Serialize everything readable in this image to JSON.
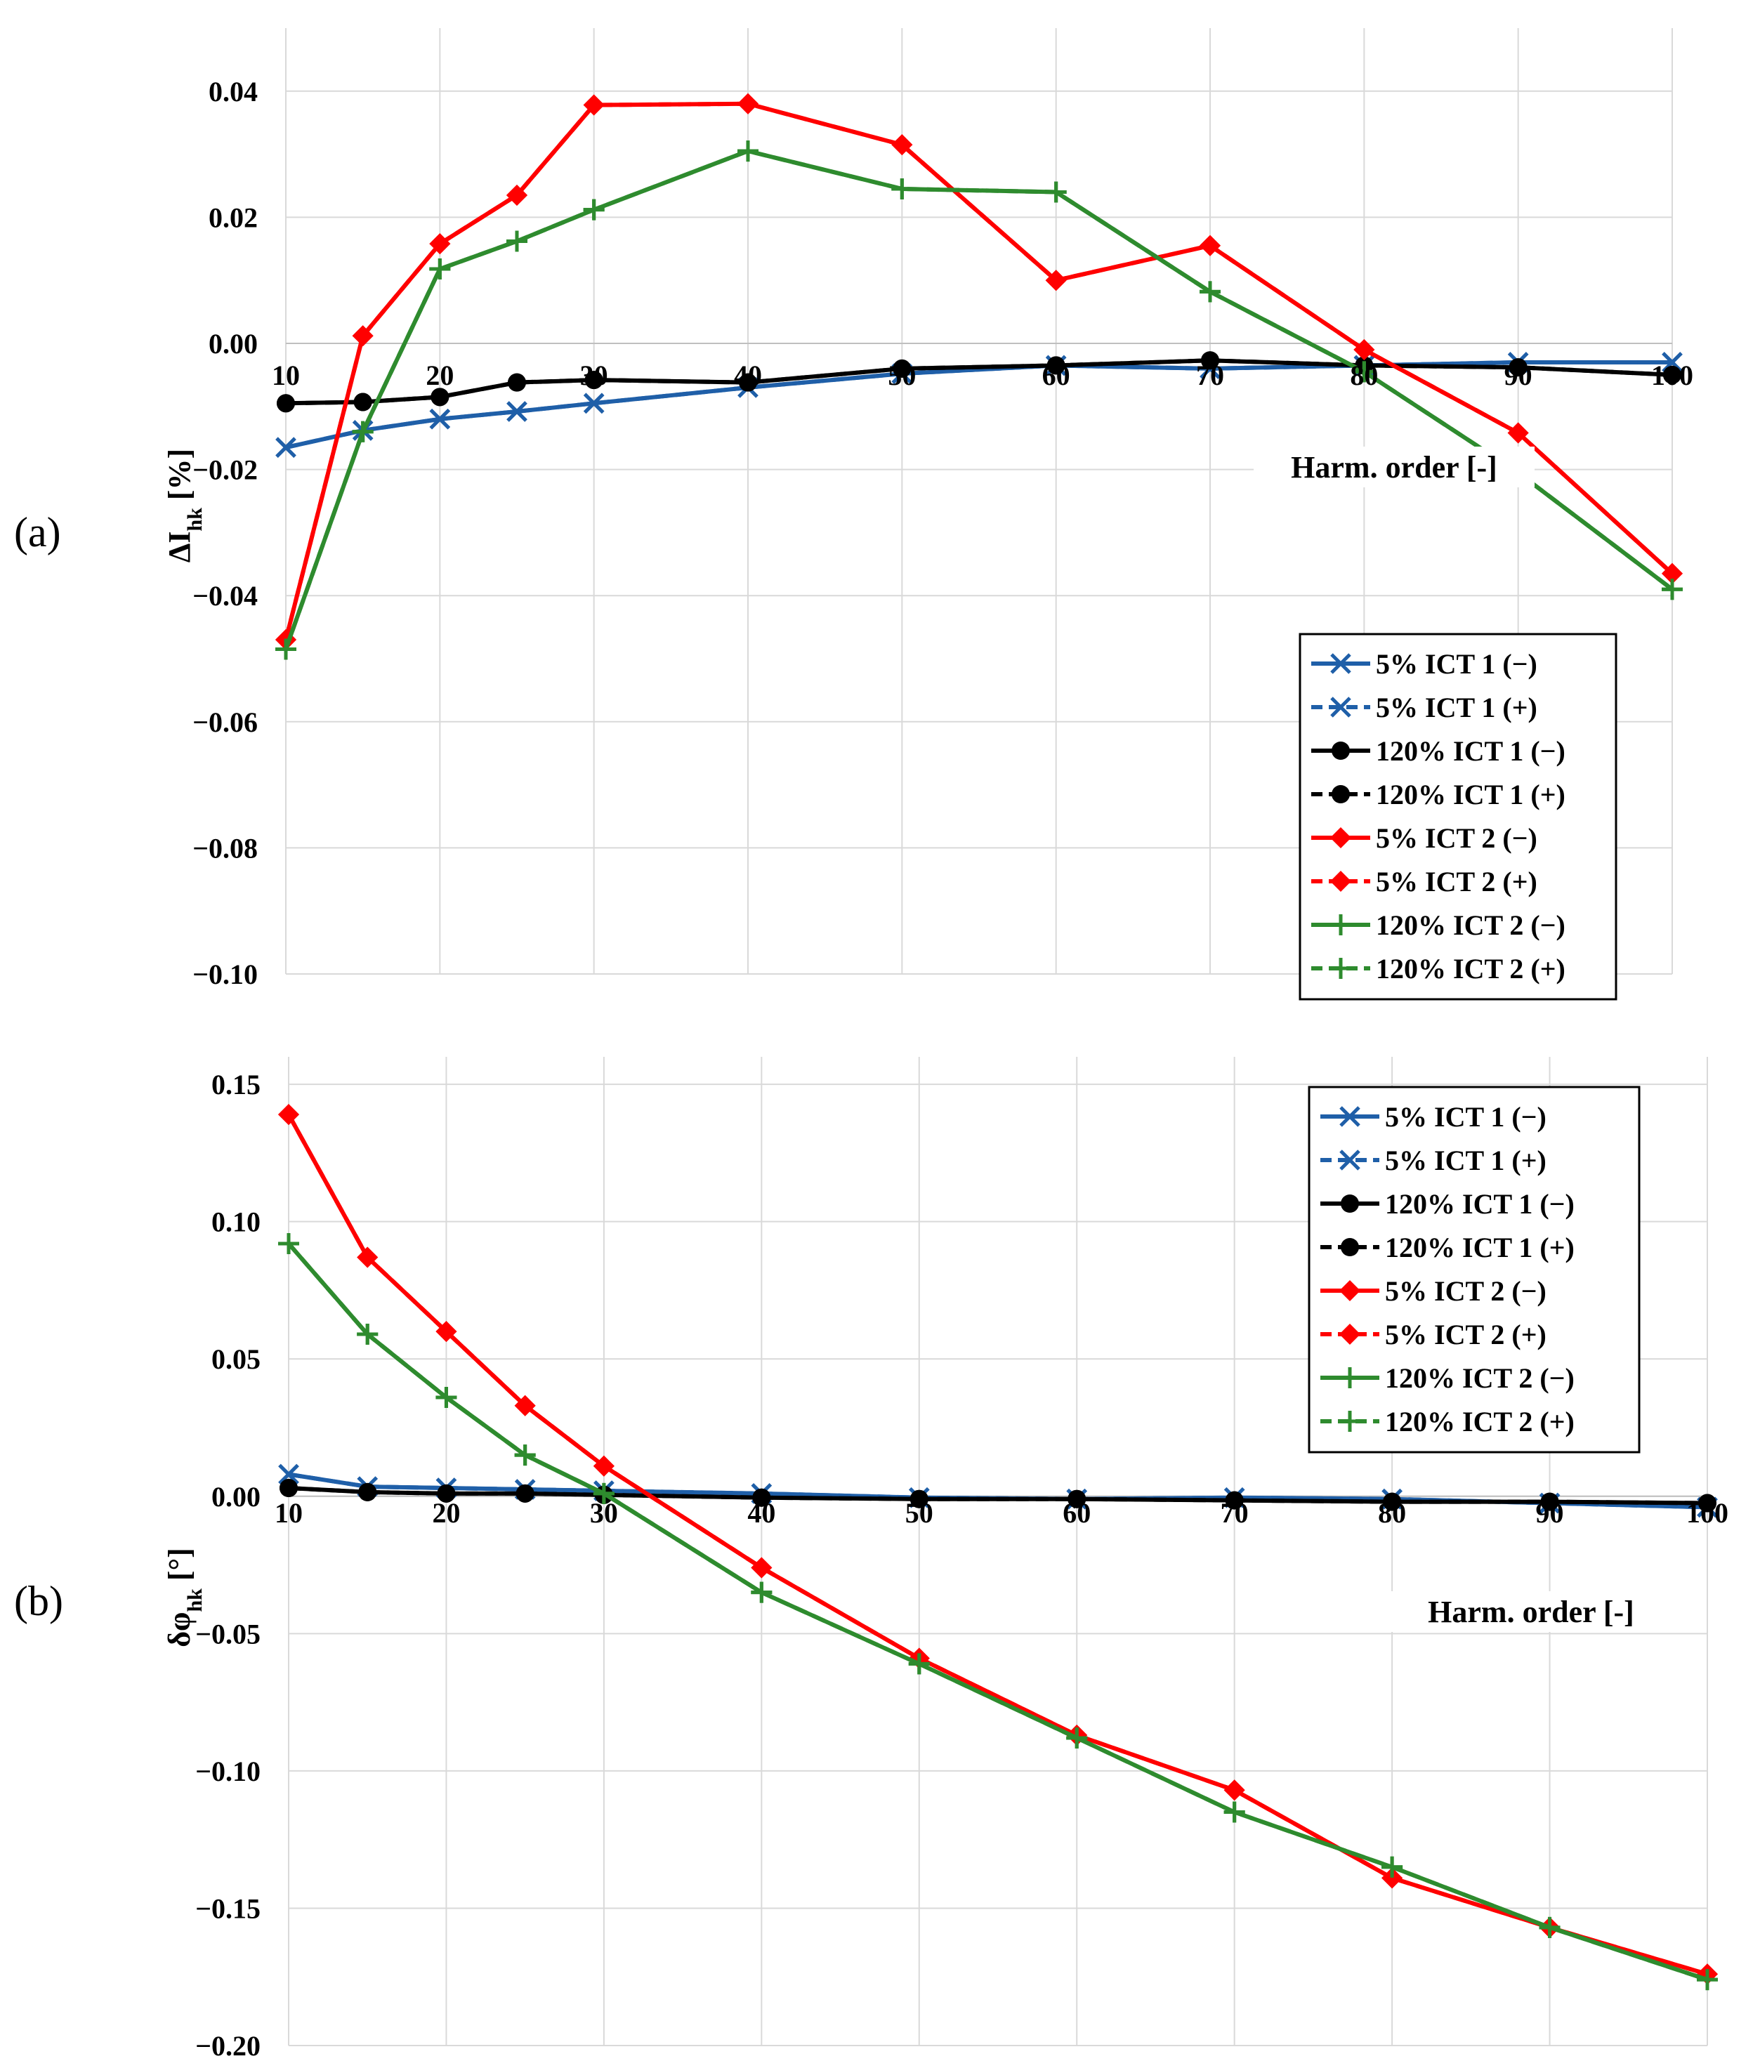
{
  "figure": {
    "panels": [
      "(a)",
      "(b)"
    ]
  },
  "chart_data": [
    {
      "type": "line",
      "panel_label": "(a)",
      "title": "",
      "xlabel": "Harm. order [-]",
      "ylabel": "ΔI",
      "ylabel_sub": "hk",
      "ylabel_unit": " [%]",
      "xlim": [
        10,
        100
      ],
      "ylim": [
        -0.1,
        0.05
      ],
      "x_ticks": [
        10,
        20,
        30,
        40,
        50,
        60,
        70,
        80,
        90,
        100
      ],
      "y_ticks": [
        0.04,
        0.02,
        0.0,
        -0.02,
        -0.04,
        -0.06,
        -0.08,
        -0.1
      ],
      "y_tick_labels": [
        "0.04",
        "0.02",
        "0.00",
        "−0.02",
        "−0.04",
        "−0.06",
        "−0.08",
        "−0.10"
      ],
      "grid": true,
      "legend_position": "lower-right",
      "series": [
        {
          "name": "5% ICT 1 (−)",
          "color": "#1f5fa8",
          "marker": "x",
          "dashed": false,
          "x": [
            10,
            15,
            20,
            25,
            30,
            40,
            50,
            60,
            70,
            80,
            90,
            100
          ],
          "y": [
            -0.0165,
            -0.0138,
            -0.012,
            -0.0108,
            -0.0095,
            -0.007,
            -0.0048,
            -0.0035,
            -0.004,
            -0.0035,
            -0.003,
            -0.003
          ]
        },
        {
          "name": "5% ICT 1 (+)",
          "color": "#1f5fa8",
          "marker": "x",
          "dashed": true,
          "x": [
            10,
            15,
            20,
            25,
            30,
            40,
            50,
            60,
            70,
            80,
            90,
            100
          ],
          "y": [
            -0.0165,
            -0.0138,
            -0.012,
            -0.0108,
            -0.0095,
            -0.007,
            -0.0048,
            -0.0035,
            -0.004,
            -0.0035,
            -0.003,
            -0.003
          ]
        },
        {
          "name": "120% ICT 1 (−)",
          "color": "#000000",
          "marker": "circle",
          "dashed": false,
          "x": [
            10,
            15,
            20,
            25,
            30,
            40,
            50,
            60,
            70,
            80,
            90,
            100
          ],
          "y": [
            -0.0095,
            -0.0093,
            -0.0085,
            -0.0062,
            -0.0058,
            -0.0062,
            -0.004,
            -0.0035,
            -0.0027,
            -0.0035,
            -0.0038,
            -0.005
          ]
        },
        {
          "name": "120% ICT 1 (+)",
          "color": "#000000",
          "marker": "circle",
          "dashed": true,
          "x": [
            10,
            15,
            20,
            25,
            30,
            40,
            50,
            60,
            70,
            80,
            90,
            100
          ],
          "y": [
            -0.0095,
            -0.0093,
            -0.0085,
            -0.0062,
            -0.0058,
            -0.0062,
            -0.004,
            -0.0035,
            -0.0027,
            -0.0035,
            -0.0038,
            -0.005
          ]
        },
        {
          "name": "5% ICT 2 (−)",
          "color": "#ff0000",
          "marker": "diamond",
          "dashed": false,
          "x": [
            10,
            15,
            20,
            25,
            30,
            40,
            50,
            60,
            70,
            80,
            90,
            100
          ],
          "y": [
            -0.047,
            0.0012,
            0.0158,
            0.0235,
            0.0378,
            0.038,
            0.0315,
            0.01,
            0.0155,
            -0.001,
            -0.0142,
            -0.0365
          ]
        },
        {
          "name": "5% ICT 2 (+)",
          "color": "#ff0000",
          "marker": "diamond",
          "dashed": true,
          "x": [
            10,
            15,
            20,
            25,
            30,
            40,
            50,
            60,
            70,
            80,
            90,
            100
          ],
          "y": [
            -0.047,
            0.0012,
            0.0158,
            0.0235,
            0.0378,
            0.038,
            0.0315,
            0.01,
            0.0155,
            -0.001,
            -0.0142,
            -0.0365
          ]
        },
        {
          "name": "120% ICT 2 (−)",
          "color": "#2e8b2e",
          "marker": "plus",
          "dashed": false,
          "x": [
            10,
            15,
            20,
            25,
            30,
            40,
            50,
            60,
            70,
            80,
            90,
            100
          ],
          "y": [
            -0.0485,
            -0.014,
            0.0118,
            0.0162,
            0.0212,
            0.0305,
            0.0245,
            0.024,
            0.0082,
            -0.0045,
            -0.0205,
            -0.039
          ]
        },
        {
          "name": "120% ICT 2 (+)",
          "color": "#2e8b2e",
          "marker": "plus",
          "dashed": true,
          "x": [
            10,
            15,
            20,
            25,
            30,
            40,
            50,
            60,
            70,
            80,
            90,
            100
          ],
          "y": [
            -0.0485,
            -0.014,
            0.0118,
            0.0162,
            0.0212,
            0.0305,
            0.0245,
            0.024,
            0.0082,
            -0.0045,
            -0.0205,
            -0.039
          ]
        }
      ]
    },
    {
      "type": "line",
      "panel_label": "(b)",
      "title": "",
      "xlabel": "Harm. order [-]",
      "ylabel": "δφ",
      "ylabel_sub": "hk",
      "ylabel_unit": " [°]",
      "xlim": [
        10,
        100
      ],
      "ylim": [
        -0.2,
        0.16
      ],
      "x_ticks": [
        10,
        20,
        30,
        40,
        50,
        60,
        70,
        80,
        90,
        100
      ],
      "y_ticks": [
        0.15,
        0.1,
        0.05,
        0.0,
        -0.05,
        -0.1,
        -0.15,
        -0.2
      ],
      "y_tick_labels": [
        "0.15",
        "0.10",
        "0.05",
        "0.00",
        "−0.05",
        "−0.10",
        "−0.15",
        "−0.20"
      ],
      "grid": true,
      "legend_position": "top-right",
      "series": [
        {
          "name": "5% ICT 1 (−)",
          "color": "#1f5fa8",
          "marker": "x",
          "dashed": false,
          "x": [
            10,
            15,
            20,
            25,
            30,
            40,
            50,
            60,
            70,
            80,
            90,
            100
          ],
          "y": [
            0.008,
            0.0035,
            0.003,
            0.0025,
            0.002,
            0.001,
            -0.0005,
            -0.001,
            -0.0005,
            -0.001,
            -0.0025,
            -0.004
          ]
        },
        {
          "name": "5% ICT 1 (+)",
          "color": "#1f5fa8",
          "marker": "x",
          "dashed": true,
          "x": [
            10,
            15,
            20,
            25,
            30,
            40,
            50,
            60,
            70,
            80,
            90,
            100
          ],
          "y": [
            0.008,
            0.0035,
            0.003,
            0.0025,
            0.002,
            0.001,
            -0.0005,
            -0.001,
            -0.0005,
            -0.001,
            -0.0025,
            -0.004
          ]
        },
        {
          "name": "120% ICT 1 (−)",
          "color": "#000000",
          "marker": "circle",
          "dashed": false,
          "x": [
            10,
            15,
            20,
            25,
            30,
            40,
            50,
            60,
            70,
            80,
            90,
            100
          ],
          "y": [
            0.003,
            0.0015,
            0.001,
            0.001,
            0.0005,
            -0.0005,
            -0.001,
            -0.001,
            -0.0015,
            -0.002,
            -0.002,
            -0.0025
          ]
        },
        {
          "name": "120% ICT 1 (+)",
          "color": "#000000",
          "marker": "circle",
          "dashed": true,
          "x": [
            10,
            15,
            20,
            25,
            30,
            40,
            50,
            60,
            70,
            80,
            90,
            100
          ],
          "y": [
            0.003,
            0.0015,
            0.001,
            0.001,
            0.0005,
            -0.0005,
            -0.001,
            -0.001,
            -0.0015,
            -0.002,
            -0.002,
            -0.0025
          ]
        },
        {
          "name": "5% ICT 2 (−)",
          "color": "#ff0000",
          "marker": "diamond",
          "dashed": false,
          "x": [
            10,
            15,
            20,
            25,
            30,
            40,
            50,
            60,
            70,
            80,
            90,
            100
          ],
          "y": [
            0.139,
            0.087,
            0.06,
            0.033,
            0.011,
            -0.026,
            -0.059,
            -0.087,
            -0.107,
            -0.139,
            -0.157,
            -0.174
          ]
        },
        {
          "name": "5% ICT 2 (+)",
          "color": "#ff0000",
          "marker": "diamond",
          "dashed": true,
          "x": [
            10,
            15,
            20,
            25,
            30,
            40,
            50,
            60,
            70,
            80,
            90,
            100
          ],
          "y": [
            0.139,
            0.087,
            0.06,
            0.033,
            0.011,
            -0.026,
            -0.059,
            -0.087,
            -0.107,
            -0.139,
            -0.157,
            -0.174
          ]
        },
        {
          "name": "120% ICT 2 (−)",
          "color": "#2e8b2e",
          "marker": "plus",
          "dashed": false,
          "x": [
            10,
            15,
            20,
            25,
            30,
            40,
            50,
            60,
            70,
            80,
            90,
            100
          ],
          "y": [
            0.092,
            0.059,
            0.036,
            0.015,
            0.001,
            -0.035,
            -0.061,
            -0.088,
            -0.115,
            -0.135,
            -0.157,
            -0.176
          ]
        },
        {
          "name": "120% ICT 2 (+)",
          "color": "#2e8b2e",
          "marker": "plus",
          "dashed": true,
          "x": [
            10,
            15,
            20,
            25,
            30,
            40,
            50,
            60,
            70,
            80,
            90,
            100
          ],
          "y": [
            0.092,
            0.059,
            0.036,
            0.015,
            0.001,
            -0.035,
            -0.061,
            -0.088,
            -0.115,
            -0.135,
            -0.157,
            -0.176
          ]
        }
      ]
    }
  ]
}
